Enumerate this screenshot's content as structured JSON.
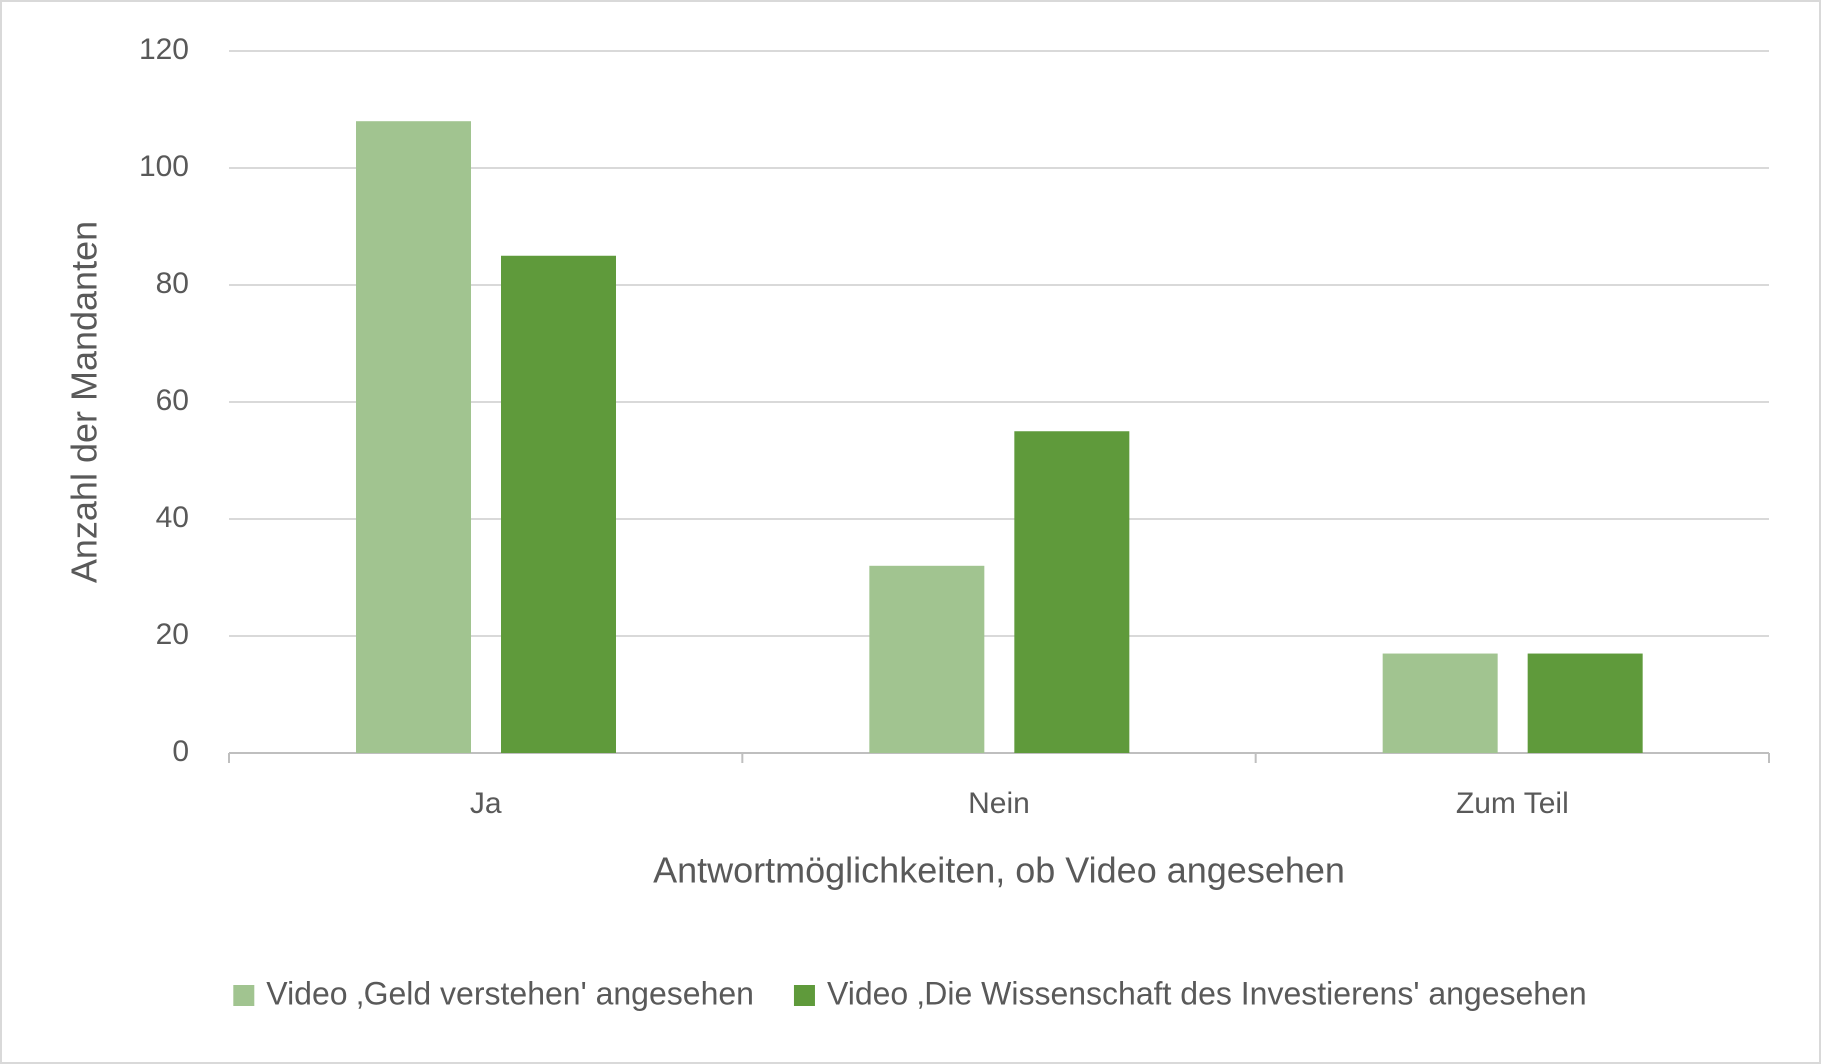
{
  "chart_data": {
    "type": "bar",
    "x_label": "Antwortmöglichkeiten, ob Video angesehen",
    "y_label": "Anzahl der Mandanten",
    "categories": [
      "Ja",
      "Nein",
      "Zum Teil"
    ],
    "series": [
      {
        "name": "Video ‚Geld verstehen' angesehen",
        "color": "#a1c490",
        "values": [
          108,
          32,
          17
        ]
      },
      {
        "name": "Video ‚Die Wissenschaft des Investierens' angesehen",
        "color": "#5f9a3b",
        "values": [
          85,
          55,
          17
        ]
      }
    ],
    "ylim": [
      0,
      120
    ],
    "yticks": [
      0,
      20,
      40,
      60,
      80,
      100,
      120
    ],
    "grid": true,
    "legend": "bottom"
  }
}
